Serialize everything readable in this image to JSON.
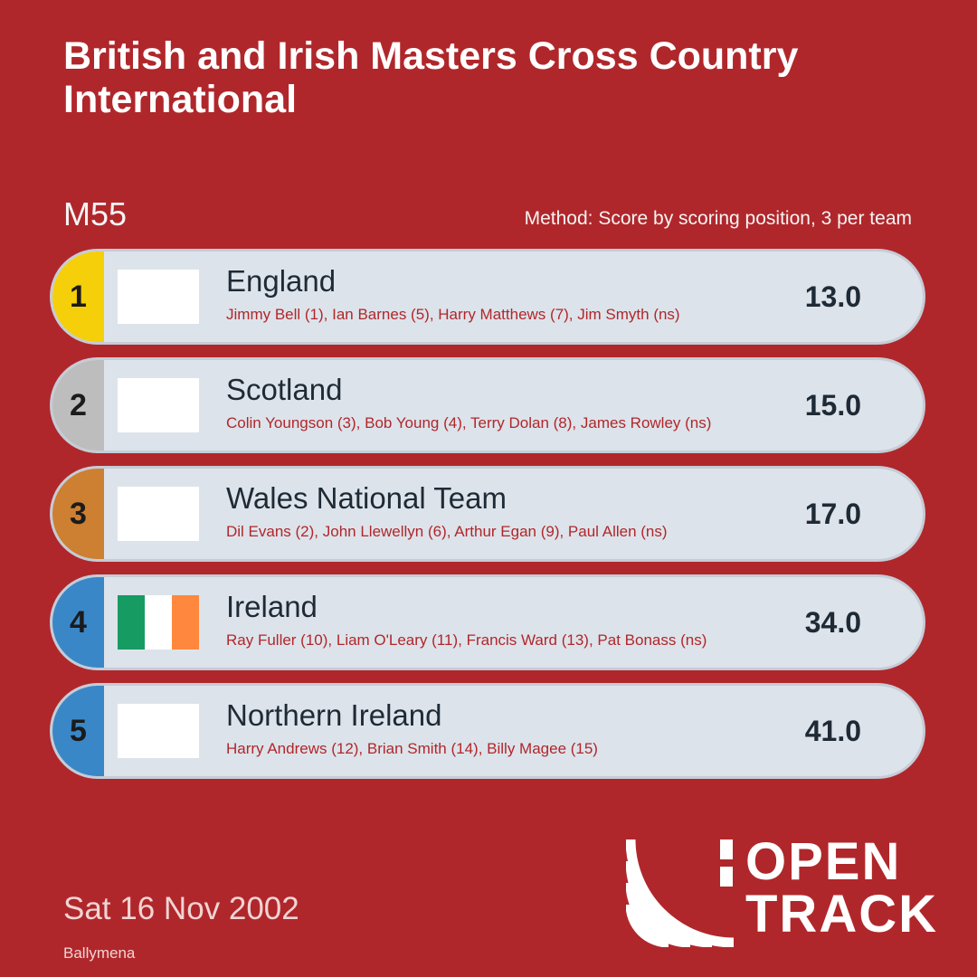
{
  "title": "British and Irish Masters Cross Country International",
  "age_group": "M55",
  "method": "Method: Score by scoring position, 3 per team",
  "teams": [
    {
      "position": "1",
      "name": "England",
      "members": "Jimmy Bell (1), Ian Barnes (5), Harry Matthews (7), Jim Smyth (ns)",
      "score": "13.0",
      "badge_color": "#f5cf0a",
      "flag_colors": []
    },
    {
      "position": "2",
      "name": "Scotland",
      "members": "Colin Youngson (3), Bob Young (4), Terry Dolan (8), James Rowley (ns)",
      "score": "15.0",
      "badge_color": "#bdbdbd",
      "flag_colors": []
    },
    {
      "position": "3",
      "name": "Wales National Team",
      "members": "Dil Evans (2), John Llewellyn (6), Arthur Egan (9), Paul Allen (ns)",
      "score": "17.0",
      "badge_color": "#cd7f32",
      "flag_colors": []
    },
    {
      "position": "4",
      "name": "Ireland",
      "members": "Ray Fuller (10), Liam O'Leary (11), Francis Ward (13), Pat Bonass (ns)",
      "score": "34.0",
      "badge_color": "#3a87c8",
      "flag_colors": [
        "#169b62",
        "#ffffff",
        "#ff883e"
      ]
    },
    {
      "position": "5",
      "name": "Northern Ireland",
      "members": "Harry Andrews (12), Brian Smith (14), Billy Magee (15)",
      "score": "41.0",
      "badge_color": "#3a87c8",
      "flag_colors": []
    }
  ],
  "date": "Sat 16 Nov 2002",
  "venue": "Ballymena",
  "logo": {
    "line1": "OPEN",
    "line2": "TRACK"
  }
}
